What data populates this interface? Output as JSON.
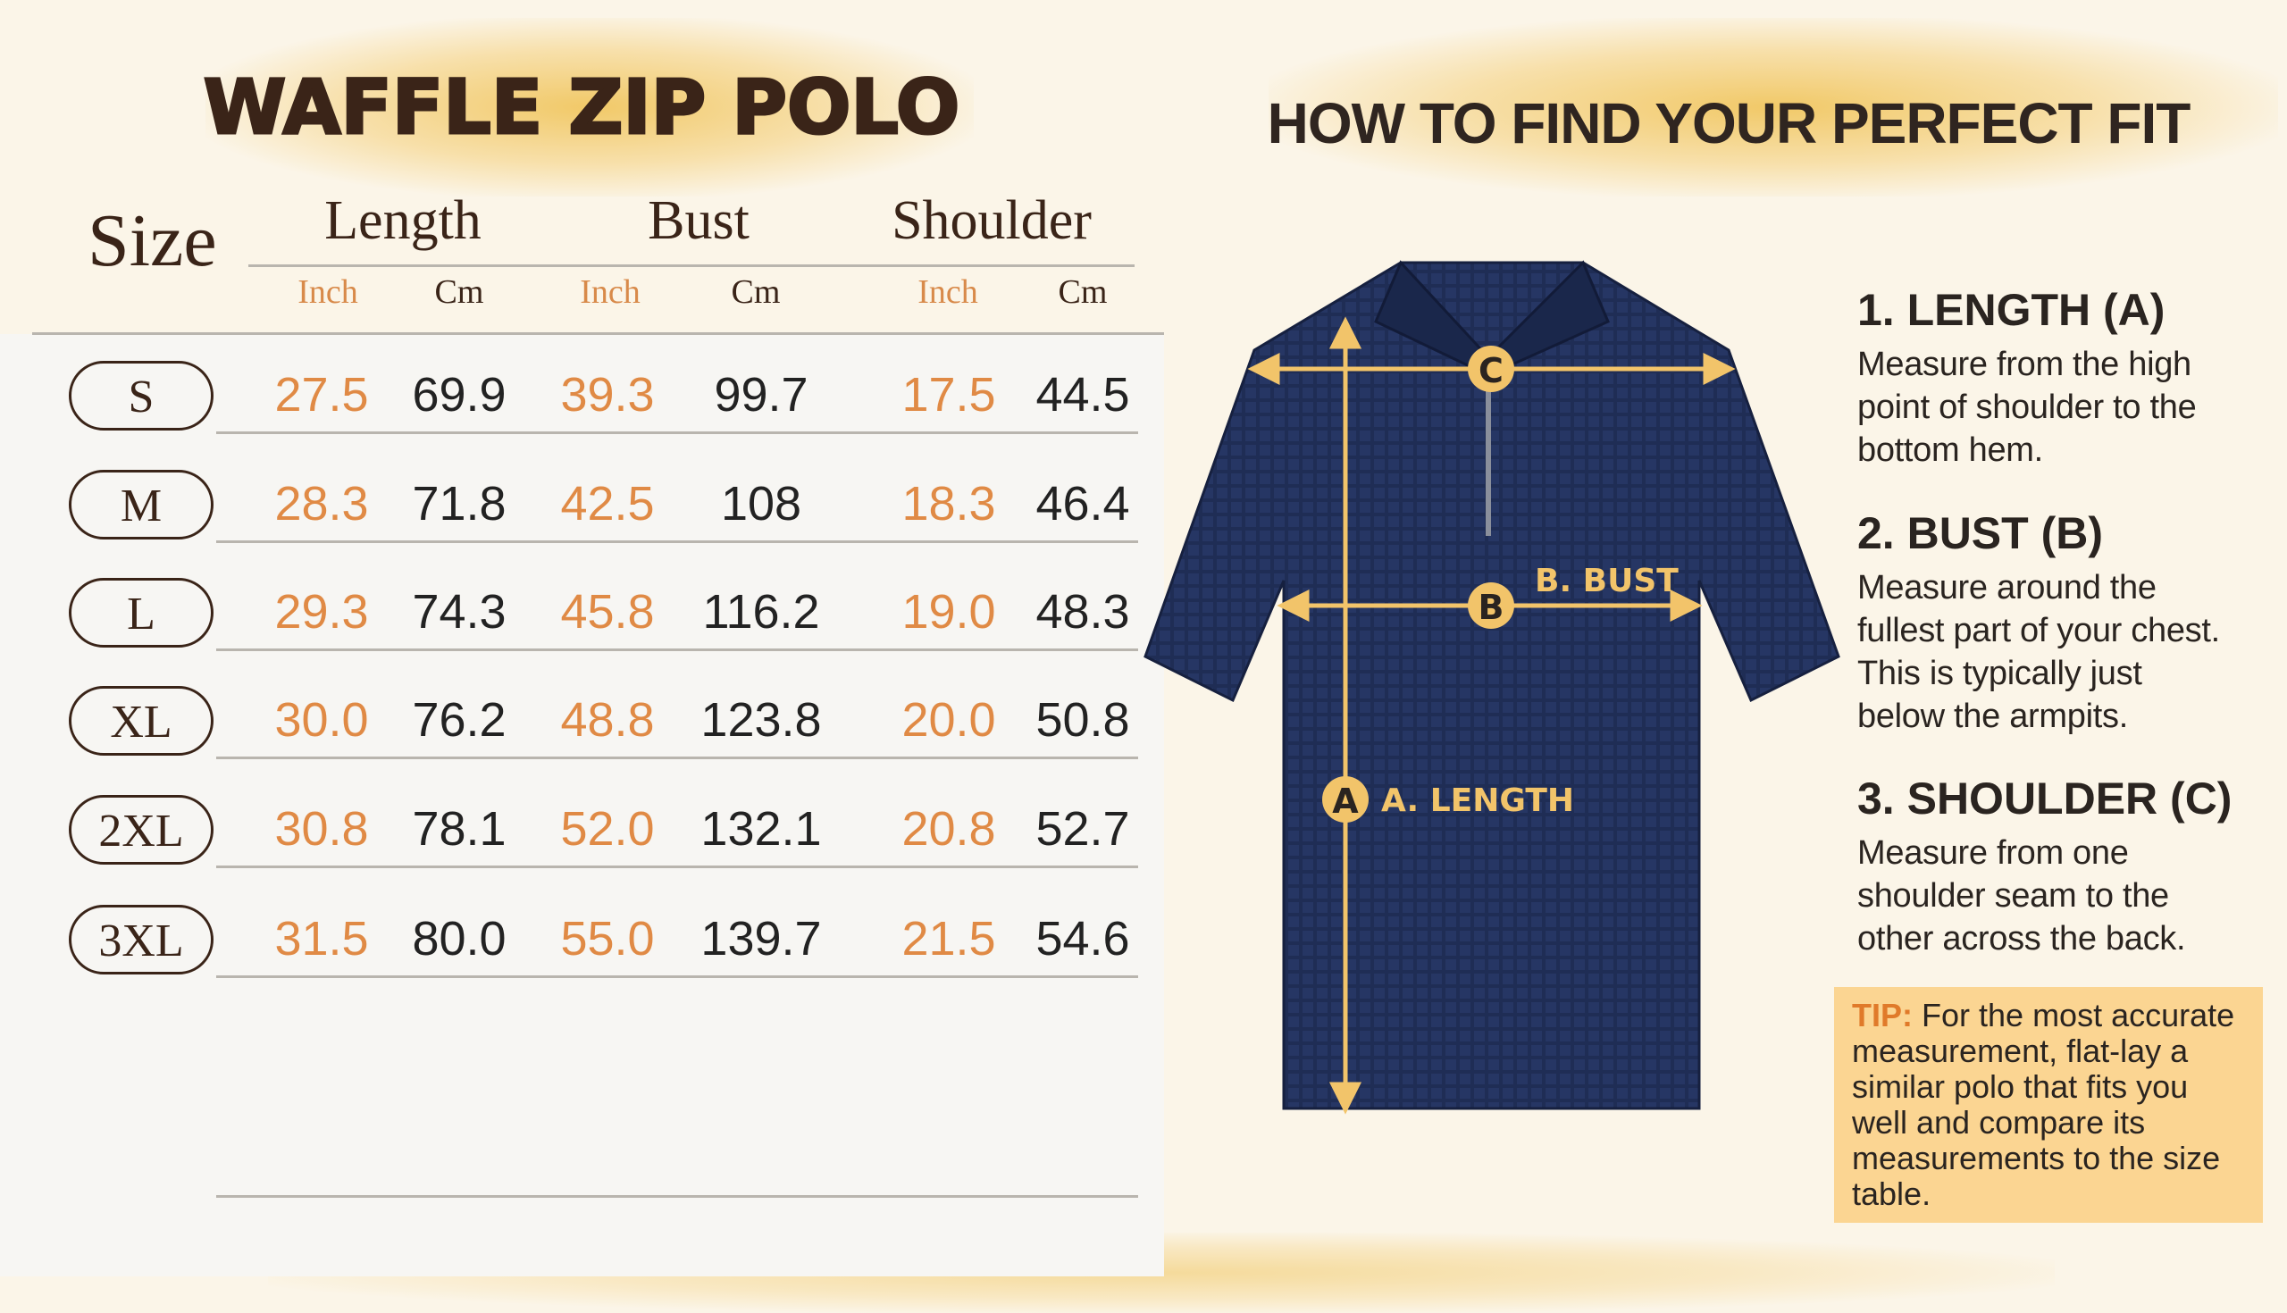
{
  "left": {
    "title": "WAFFLE ZIP POLO",
    "size_label": "Size",
    "columns": [
      {
        "label": "Length",
        "units": [
          "Inch",
          "Cm"
        ]
      },
      {
        "label": "Bust",
        "units": [
          "Inch",
          "Cm"
        ]
      },
      {
        "label": "Shoulder",
        "units": [
          "Inch",
          "Cm"
        ]
      }
    ],
    "rows": [
      {
        "size": "S",
        "values": [
          "27.5",
          "69.9",
          "39.3",
          "99.7",
          "17.5",
          "44.5"
        ]
      },
      {
        "size": "M",
        "values": [
          "28.3",
          "71.8",
          "42.5",
          "108",
          "18.3",
          "46.4"
        ]
      },
      {
        "size": "L",
        "values": [
          "29.3",
          "74.3",
          "45.8",
          "116.2",
          "19.0",
          "48.3"
        ]
      },
      {
        "size": "XL",
        "values": [
          "30.0",
          "76.2",
          "48.8",
          "123.8",
          "20.0",
          "50.8"
        ]
      },
      {
        "size": "2XL",
        "values": [
          "30.8",
          "78.1",
          "52.0",
          "132.1",
          "20.8",
          "52.7"
        ]
      },
      {
        "size": "3XL",
        "values": [
          "31.5",
          "80.0",
          "55.0",
          "139.7",
          "21.5",
          "54.6"
        ]
      }
    ]
  },
  "right": {
    "title": "HOW TO FIND YOUR PERFECT FIT",
    "diagram": {
      "markers": {
        "a": "A",
        "b": "B",
        "c": "C"
      },
      "bust_label": "B. BUST",
      "length_label": "A. LENGTH",
      "shirt_color": "#1f2d55",
      "accent_color": "#f2c46a"
    },
    "steps": [
      {
        "title": "1. LENGTH (A)",
        "lines": [
          "Measure from the high",
          "point of shoulder to the",
          "bottom hem."
        ]
      },
      {
        "title": "2. BUST (B)",
        "lines": [
          "Measure around the",
          "fullest part of your chest.",
          "This is typically just",
          "below the armpits."
        ]
      },
      {
        "title": "3. SHOULDER (C)",
        "lines": [
          "Measure from one",
          "shoulder seam to the",
          "other across the back."
        ]
      }
    ],
    "tip": {
      "label": "TIP:",
      "text": "For the most accurate measurement, flat-lay a similar polo that fits you well and compare its measurements to the size table."
    }
  }
}
